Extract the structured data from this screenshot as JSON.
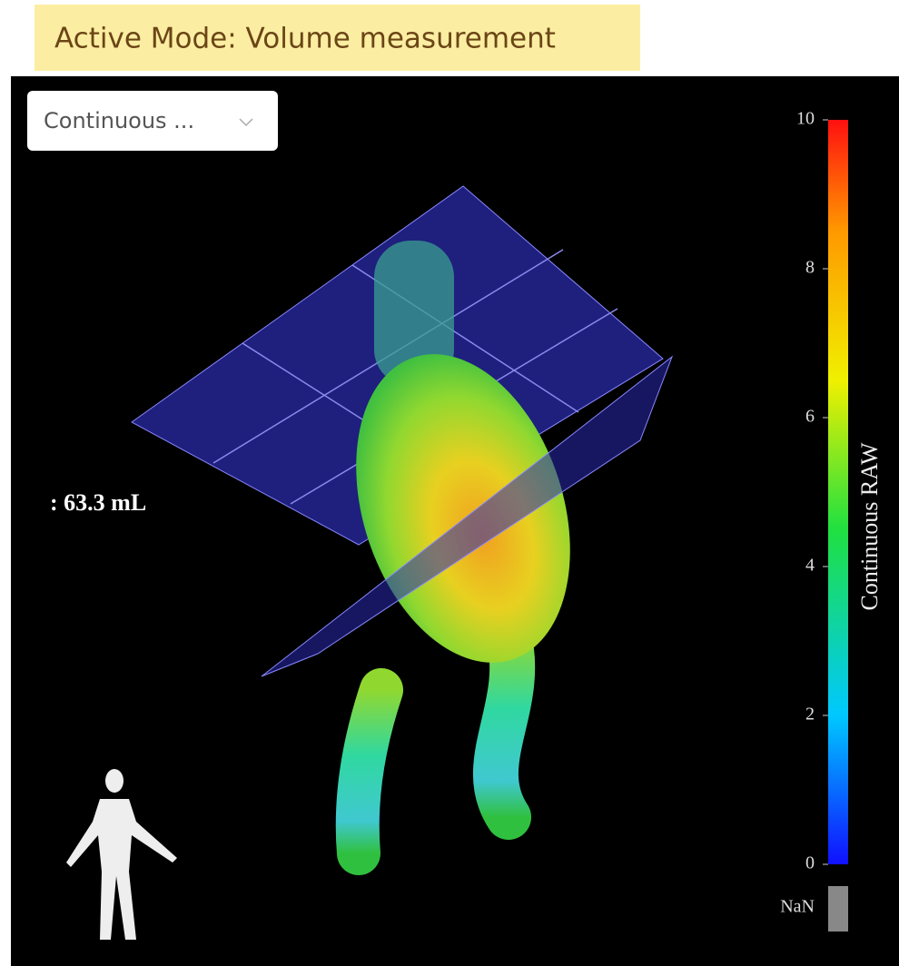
{
  "header": {
    "mode": "Active Mode: Volume measurement"
  },
  "viewer": {
    "dropdown": "Continuous ...",
    "measurement": ": 63.3 mL",
    "colorbar": {
      "title": "Continuous RAW",
      "range": [
        0,
        10
      ],
      "ticks": [
        0,
        2,
        4,
        6,
        8,
        10
      ],
      "nan_label": "NaN"
    }
  }
}
